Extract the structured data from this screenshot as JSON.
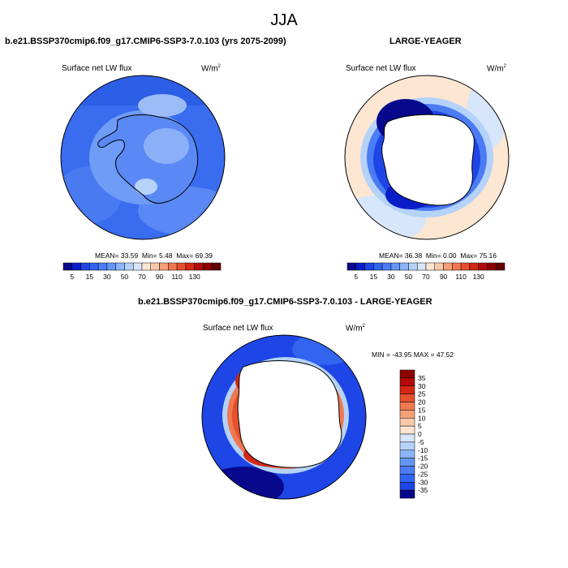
{
  "suptitle": "JJA",
  "panels": [
    {
      "title": "b.e21.BSSP370cmip6.f09_g17.CMIP6-SSP3-7.0.103 (yrs 2075-2099)",
      "variable": "Surface net LW flux",
      "units_base": "W/m",
      "units_exp": "2",
      "stats": {
        "mean": "33.59",
        "min": "5.48",
        "max": "69.39"
      }
    },
    {
      "title": "LARGE-YEAGER",
      "variable": "Surface net LW flux",
      "units_base": "W/m",
      "units_exp": "2",
      "stats": {
        "mean": "36.38",
        "min": "0.00",
        "max": "75.16"
      }
    },
    {
      "title": "b.e21.BSSP370cmip6.f09_g17.CMIP6-SSP3-7.0.103 - LARGE-YEAGER",
      "variable": "Surface net LW flux",
      "units_base": "W/m",
      "units_exp": "2",
      "minmax": "MIN = -43.95 MAX =  47.52"
    }
  ],
  "stat_labels": {
    "mean": "MEAN=",
    "min": "Min=",
    "max": "Max="
  },
  "colorbar_seq": {
    "labels": [
      "5",
      "15",
      "30",
      "50",
      "70",
      "90",
      "110",
      "130"
    ],
    "colors": [
      "#08088c",
      "#0a1ec8",
      "#1e46e6",
      "#3264f0",
      "#4b7cf4",
      "#6496f5",
      "#8cb4f8",
      "#b4d2fa",
      "#d7e6fa",
      "#fde6d2",
      "#fac8aa",
      "#f5a078",
      "#f07850",
      "#e6502d",
      "#d22814",
      "#b40a0a",
      "#8c0000",
      "#640000"
    ]
  },
  "colorbar_div": {
    "labels": [
      "35",
      "30",
      "25",
      "20",
      "15",
      "10",
      "5",
      "0",
      "-5",
      "-10",
      "-15",
      "-20",
      "-25",
      "-30",
      "-35"
    ],
    "colors": [
      "#8c0000",
      "#b40a0a",
      "#d22814",
      "#e6502d",
      "#f07850",
      "#f5a078",
      "#fac8aa",
      "#fde6d2",
      "#d7e6fa",
      "#b4d2fa",
      "#8cb4f8",
      "#6496f5",
      "#4b7cf4",
      "#3264f0",
      "#1e46e6",
      "#08088c"
    ]
  }
}
